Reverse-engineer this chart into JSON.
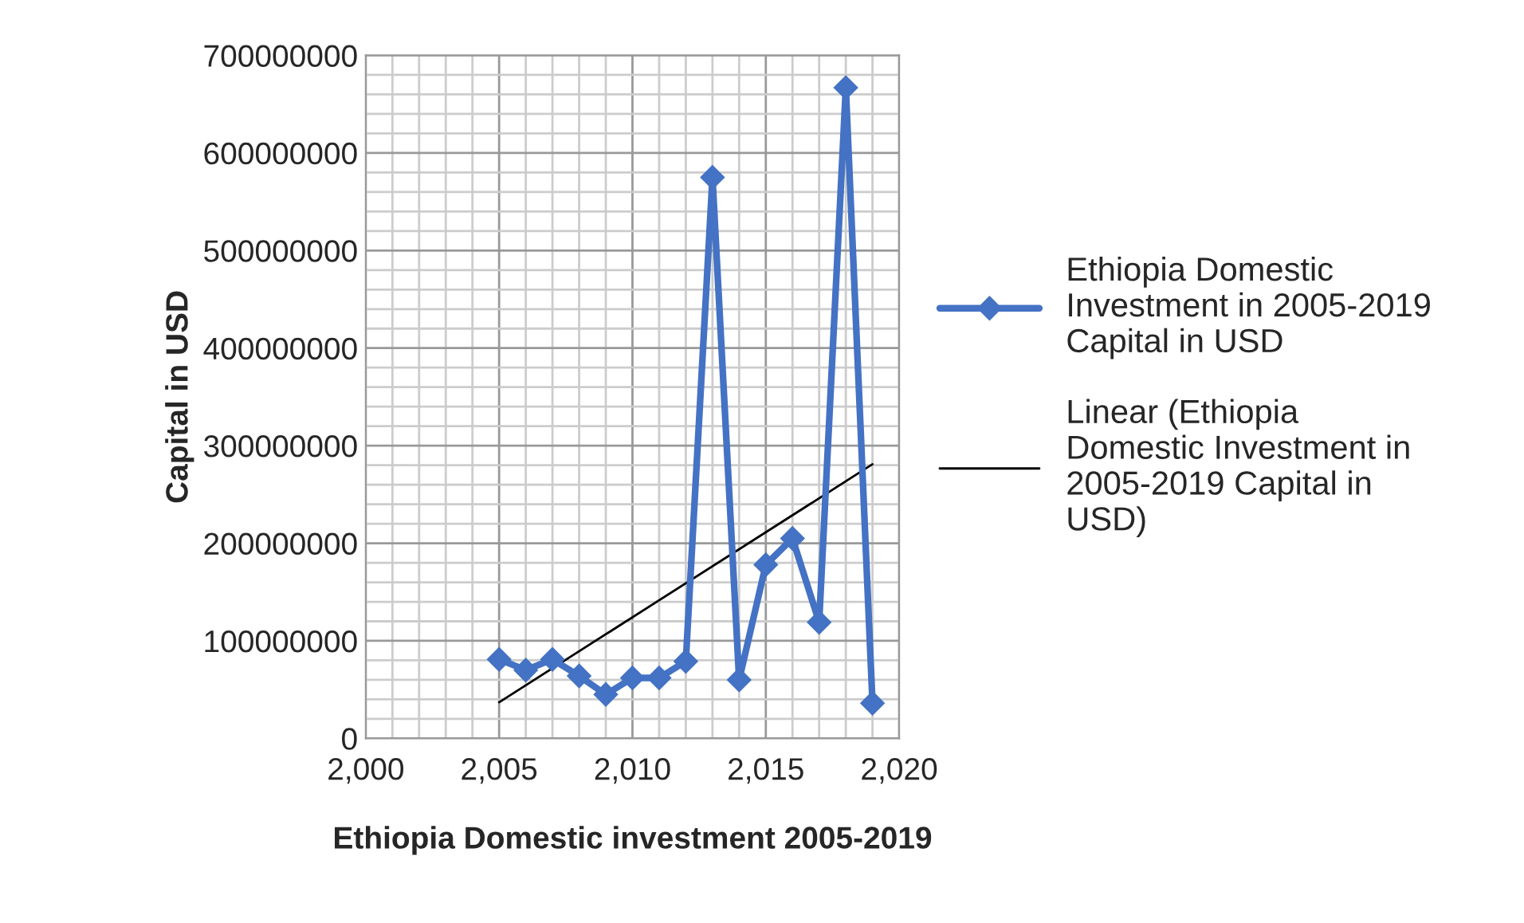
{
  "chart_data": {
    "type": "line",
    "xlabel": "Ethiopia Domestic investment 2005-2019",
    "ylabel": "Capital in USD",
    "x": [
      2005,
      2006,
      2007,
      2008,
      2009,
      2010,
      2011,
      2012,
      2013,
      2014,
      2015,
      2016,
      2017,
      2018,
      2019
    ],
    "series": [
      {
        "name": "Ethiopia Domestic Investment in 2005-2019 Capital in USD",
        "color": "#4472c4",
        "marker": "diamond",
        "line_style": "solid",
        "values": [
          81000000,
          70000000,
          81000000,
          64000000,
          45000000,
          62000000,
          62000000,
          79000000,
          575000000,
          60000000,
          178000000,
          205000000,
          119000000,
          667000000,
          36000000
        ]
      },
      {
        "name": "Linear (Ethiopia Domestic Investment in 2005-2019 Capital in USD)",
        "color": "#000000",
        "marker": "none",
        "line_style": "solid",
        "x": [
          2005,
          2019
        ],
        "values": [
          37000000,
          281000000
        ]
      }
    ],
    "xlim": [
      2000,
      2020
    ],
    "xticks": [
      {
        "value": 2000,
        "label": "2,000"
      },
      {
        "value": 2005,
        "label": "2,005"
      },
      {
        "value": 2010,
        "label": "2,010"
      },
      {
        "value": 2015,
        "label": "2,015"
      },
      {
        "value": 2020,
        "label": "2,020"
      }
    ],
    "ylim": [
      0,
      700000000
    ],
    "yticks": [
      0,
      100000000,
      200000000,
      300000000,
      400000000,
      500000000,
      600000000,
      700000000
    ],
    "grid": true,
    "legend": "right"
  }
}
